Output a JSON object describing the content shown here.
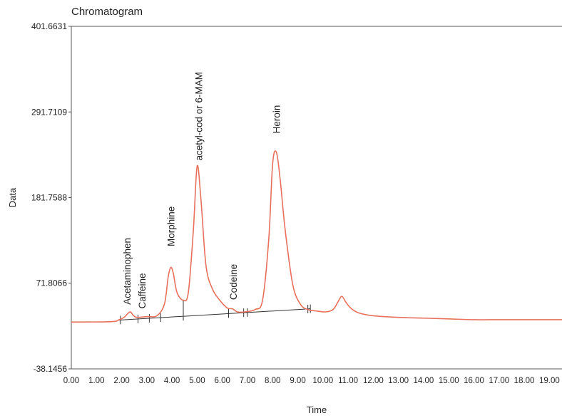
{
  "chart_data": {
    "type": "line",
    "title": "Chromatogram",
    "xlabel": "Time",
    "ylabel": "Data",
    "xlim": [
      0,
      19.5
    ],
    "ylim": [
      -38.1456,
      401.6631
    ],
    "x_ticks": [
      "0.00",
      "1.00",
      "2.00",
      "3.00",
      "4.00",
      "5.00",
      "6.00",
      "7.00",
      "8.00",
      "9.00",
      "10.00",
      "11.00",
      "12.00",
      "13.00",
      "14.00",
      "15.00",
      "16.00",
      "17.00",
      "18.00",
      "19.00"
    ],
    "y_ticks": [
      "401.6631",
      "291.7109",
      "181.7588",
      "71.8066",
      "-38.1456"
    ],
    "line_color": "#e8705c",
    "series": [
      {
        "x": [
          0,
          1.6,
          1.9,
          2.1,
          2.25,
          2.35,
          2.45,
          2.6,
          3.0,
          3.4,
          3.7,
          3.85,
          3.95,
          4.05,
          4.2,
          4.45,
          4.65,
          4.85,
          5.0,
          5.15,
          5.35,
          5.6,
          5.9,
          6.2,
          6.4,
          6.6,
          6.9,
          7.3,
          7.6,
          7.85,
          8.0,
          8.15,
          8.3,
          8.5,
          8.8,
          9.1,
          9.4,
          9.8,
          10.1,
          10.4,
          10.6,
          10.75,
          10.9,
          11.1,
          11.4,
          12.0,
          13.0,
          14.0,
          15.0,
          16.0,
          17.0,
          18.0,
          19.0,
          19.5
        ],
        "y": [
          22,
          22.5,
          25,
          28,
          33,
          35,
          31,
          28,
          29,
          30,
          45,
          80,
          92,
          85,
          60,
          50,
          60,
          140,
          222,
          180,
          95,
          65,
          50,
          40,
          39,
          35,
          35,
          38,
          50,
          130,
          225,
          240,
          205,
          140,
          70,
          45,
          38,
          36,
          35,
          38,
          48,
          55,
          48,
          40,
          34,
          30,
          28,
          27,
          26,
          25,
          25,
          25,
          25,
          25
        ]
      }
    ],
    "baseline": {
      "x": [
        1.9,
        9.5
      ],
      "y": [
        24.5,
        39
      ]
    },
    "integration_marks_x": [
      1.95,
      2.65,
      3.1,
      3.55,
      4.45,
      6.25,
      6.85,
      7.0,
      9.4,
      9.5
    ],
    "peak_labels": [
      {
        "text": "Acetaminophen",
        "x": 2.3,
        "y": 37
      },
      {
        "text": "Caffeine",
        "x": 2.75,
        "y": 30
      },
      {
        "text": "Morphine",
        "x": 3.95,
        "y": 110
      },
      {
        "text": "acetyl-cod or 6-MAM",
        "x": 5.0,
        "y": 222
      },
      {
        "text": "Codeine",
        "x": 6.35,
        "y": 45
      },
      {
        "text": "Heroin",
        "x": 8.15,
        "y": 255
      }
    ]
  }
}
